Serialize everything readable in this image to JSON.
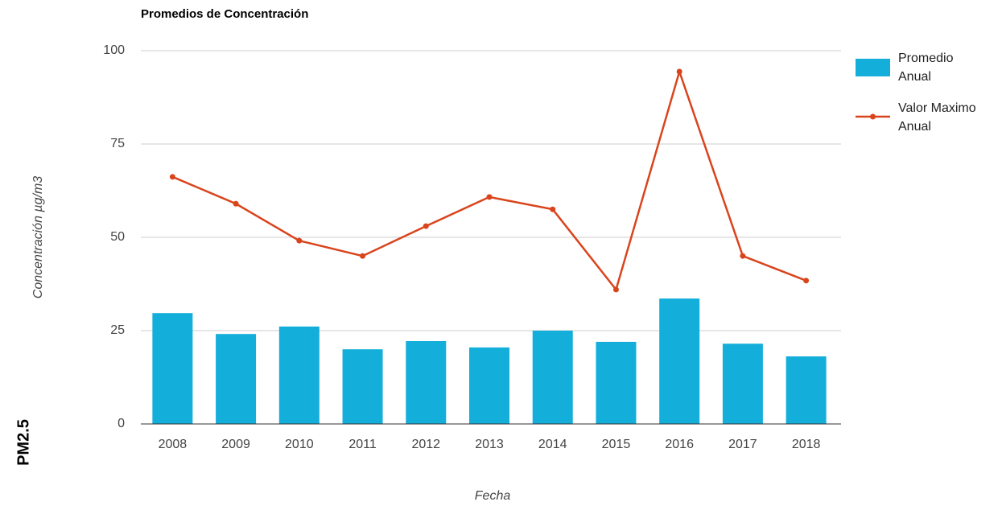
{
  "chart_data": {
    "type": "combo",
    "title": "Promedios de Concentración",
    "side_label": "PM2.5",
    "x_label": "Fecha",
    "y_label": "Concentración µg/m3",
    "categories": [
      "2008",
      "2009",
      "2010",
      "2011",
      "2012",
      "2013",
      "2014",
      "2015",
      "2016",
      "2017",
      "2018"
    ],
    "series": [
      {
        "name": "Promedio Anual",
        "type": "bar",
        "color": "#14aedb",
        "values": [
          29.7,
          24.1,
          26.1,
          20.0,
          22.2,
          20.5,
          25.0,
          22.0,
          33.6,
          21.5,
          18.1
        ]
      },
      {
        "name": "Valor Maximo Anual",
        "type": "line",
        "color": "#d9441c",
        "values": [
          66.2,
          59.0,
          49.1,
          45.0,
          53.0,
          60.8,
          57.5,
          36.0,
          94.4,
          45.0,
          38.4
        ]
      }
    ],
    "ylim": [
      0,
      100
    ],
    "yticks": [
      0,
      25,
      50,
      75,
      100
    ],
    "grid": true,
    "legend": "right"
  }
}
